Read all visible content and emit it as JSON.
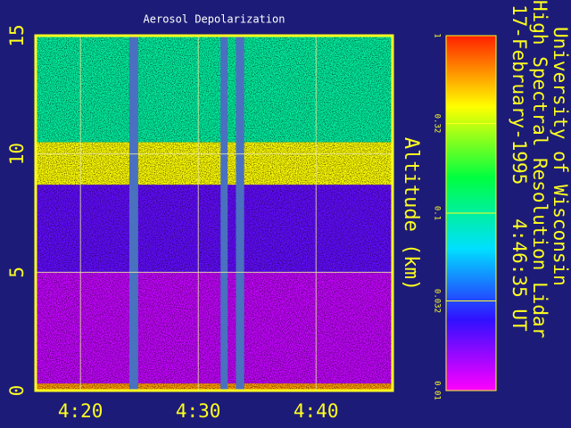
{
  "chart_data": {
    "type": "lidar",
    "title": "Aerosol Depolarization",
    "y_label": "Altitude (km)",
    "header_lines": [
      "University of Wisconsin",
      "High Spectral Resolution Lidar",
      "17-February-1995   4:46:35 UT"
    ],
    "xlim": [
      256.2,
      286.5
    ],
    "xticks": [
      {
        "value": 260,
        "label": "4:20"
      },
      {
        "value": 270,
        "label": "4:30"
      },
      {
        "value": 280,
        "label": "4:40"
      }
    ],
    "ylim": [
      0,
      15
    ],
    "yticks": [
      0,
      5,
      10,
      15
    ],
    "grid": true,
    "layers": [
      {
        "bottom": 0,
        "top": 0.3,
        "value": 0.6
      },
      {
        "bottom": 0.3,
        "top": 5,
        "value": 0.013
      },
      {
        "bottom": 5,
        "top": 8.7,
        "value": 0.02
      },
      {
        "bottom": 8.7,
        "top": 10.5,
        "value": 0.4
      },
      {
        "bottom": 10.5,
        "top": 15,
        "value": 0.1
      }
    ],
    "gaps": [
      {
        "start": 264.15,
        "end": 264.9
      },
      {
        "start": 271.9,
        "end": 272.5
      },
      {
        "start": 273.2,
        "end": 273.9
      }
    ],
    "colorbar": {
      "lim": [
        0.01,
        1
      ],
      "log": true,
      "ticks": [
        1,
        0.32,
        0.1,
        0.032,
        0.01
      ],
      "colors": [
        "#ff00ff",
        "#3010ff",
        "#00e0ff",
        "#00ff40",
        "#ffff00",
        "#ff2000"
      ]
    }
  }
}
